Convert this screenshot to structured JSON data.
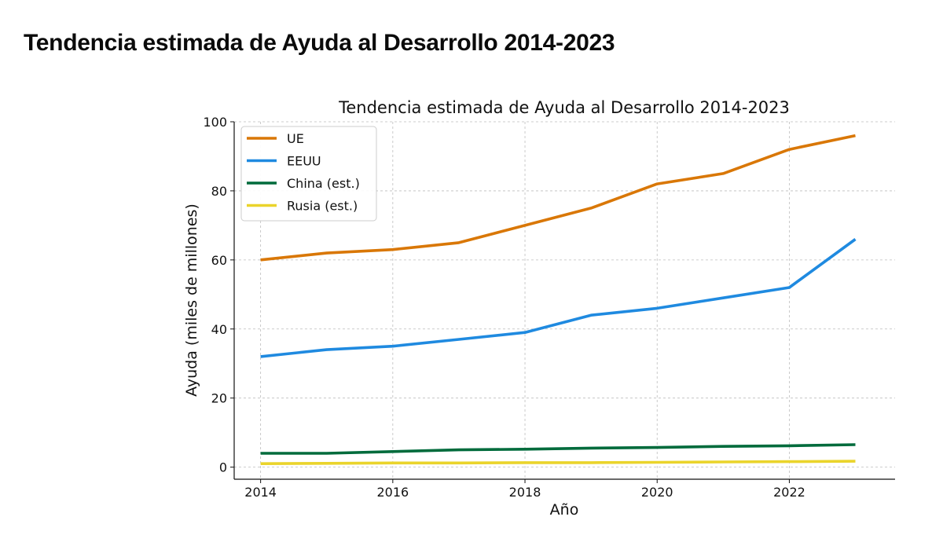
{
  "page": {
    "heading": "Tendencia estimada de Ayuda al Desarrollo 2014-2023"
  },
  "chart_data": {
    "type": "line",
    "title": "Tendencia estimada de Ayuda al Desarrollo 2014-2023",
    "xlabel": "Año",
    "ylabel": "Ayuda (miles de millones)",
    "x": [
      2014,
      2015,
      2016,
      2017,
      2018,
      2019,
      2020,
      2021,
      2022,
      2023
    ],
    "xlim": [
      2013.6,
      2023.6
    ],
    "ylim": [
      -3.5,
      100
    ],
    "xticks": [
      2014,
      2016,
      2018,
      2020,
      2022
    ],
    "yticks": [
      0,
      20,
      40,
      60,
      80,
      100
    ],
    "grid": true,
    "legend_position": "top-left",
    "series": [
      {
        "name": "UE",
        "color": "#d97706",
        "values": [
          60,
          62,
          63,
          65,
          70,
          75,
          82,
          85,
          92,
          96
        ]
      },
      {
        "name": "EEUU",
        "color": "#1f8ae0",
        "values": [
          32,
          34,
          35,
          37,
          39,
          44,
          46,
          49,
          52,
          66
        ]
      },
      {
        "name": "China (est.)",
        "color": "#006b3c",
        "values": [
          4,
          4,
          4.5,
          5,
          5.2,
          5.5,
          5.7,
          6,
          6.2,
          6.5
        ]
      },
      {
        "name": "Rusia (est.)",
        "color": "#ead42b",
        "values": [
          1,
          1.1,
          1.2,
          1.2,
          1.3,
          1.3,
          1.4,
          1.5,
          1.6,
          1.7
        ]
      }
    ]
  }
}
